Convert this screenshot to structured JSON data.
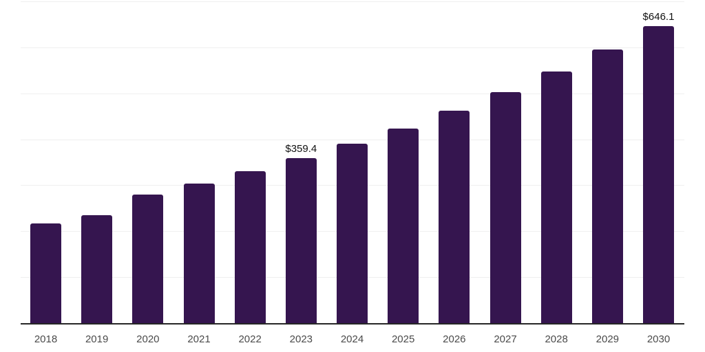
{
  "chart_data": {
    "type": "bar",
    "title": "",
    "xlabel": "",
    "ylabel": "",
    "categories": [
      "2018",
      "2019",
      "2020",
      "2021",
      "2022",
      "2023",
      "2024",
      "2025",
      "2026",
      "2027",
      "2028",
      "2029",
      "2030"
    ],
    "values": [
      217,
      235,
      280,
      304,
      331,
      359.4,
      391,
      423,
      462,
      502,
      547,
      596,
      646.1
    ],
    "value_labels": [
      {
        "category": "2023",
        "text": "$359.4"
      },
      {
        "category": "2030",
        "text": "$646.1"
      }
    ],
    "ylim": [
      0,
      700
    ],
    "gridline_step": 100,
    "grid": true,
    "legend_position": "none",
    "colors": {
      "bar": "#35154F",
      "gridline": "#EFEFEF",
      "axis_line": "#262626",
      "tick_label": "#4A4A4A",
      "value_label": "#111111",
      "background": "#FFFFFF"
    }
  }
}
